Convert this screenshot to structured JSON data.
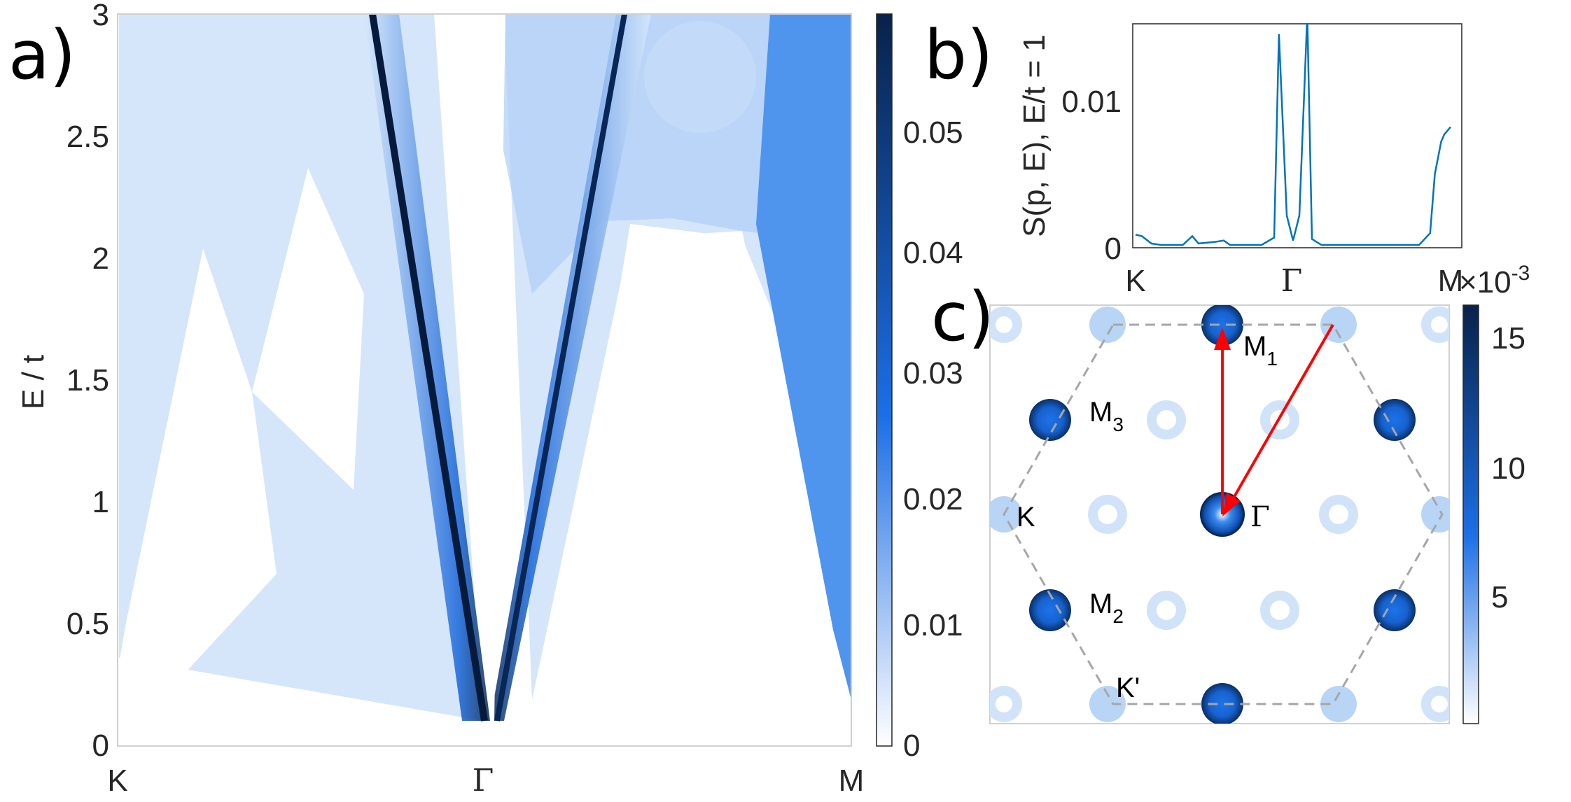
{
  "figure": {
    "panels": [
      {
        "letter": "a)",
        "chart_data": {
          "type": "heatmap",
          "title": "",
          "xlabel": "",
          "ylabel": "E / t",
          "x_ticks": [
            "K",
            "Γ",
            "M"
          ],
          "ylim": [
            0,
            3
          ],
          "y_ticks": [
            "0",
            "0.5",
            "1",
            "1.5",
            "2",
            "2.5",
            "3"
          ],
          "colorbar": {
            "range": [
              0,
              0.058
            ],
            "ticks": [
              "0",
              "0.01",
              "0.02",
              "0.03",
              "0.04",
              "0.05"
            ],
            "colormap": [
              "#ffffff",
              "#1c6fe6",
              "#08224a"
            ]
          },
          "features": [
            {
              "name": "",
              "type": "line",
              "x": [
                "K",
                "Γ"
              ],
              "y": [
                3,
                0.15
              ]
            },
            {
              "name": "",
              "type": "line",
              "x": [
                "Γ",
                "M"
              ],
              "y": [
                0.15,
                3
              ]
            }
          ]
        }
      },
      {
        "letter": "b)",
        "chart_data": {
          "type": "line",
          "title": "",
          "xlabel": "",
          "ylabel": "S(p, E), E/t = 1",
          "x_ticks": [
            "K",
            "Γ",
            "M"
          ],
          "ylim": [
            0,
            0.015
          ],
          "y_ticks": [
            "0",
            "0.01"
          ],
          "series": [
            {
              "name": "",
              "color": "#0072bd",
              "x": [
                0,
                0.02,
                0.05,
                0.08,
                0.15,
                0.18,
                0.2,
                0.25,
                0.28,
                0.3,
                0.4,
                0.44,
                0.455,
                0.48,
                0.5,
                0.52,
                0.545,
                0.56,
                0.59,
                0.62,
                0.66,
                0.7,
                0.9,
                0.935,
                0.95,
                0.97,
                0.98,
                1.0
              ],
              "values": [
                0.0007,
                0.0006,
                0.0001,
                0,
                0,
                0.0006,
                0.0001,
                0.0002,
                0.0003,
                0,
                0,
                0.0005,
                0.0143,
                0.002,
                0.0003,
                0.002,
                0.0156,
                0.0004,
                0,
                0,
                0,
                0,
                0,
                0.0008,
                0.0048,
                0.007,
                0.0075,
                0.008
              ]
            }
          ]
        }
      },
      {
        "letter": "c)",
        "chart_data": {
          "type": "heatmap",
          "title": "",
          "colorbar": {
            "exponent": "×10",
            "exponent_power": "-3",
            "range": [
              0,
              16
            ],
            "ticks": [
              "5",
              "10",
              "15"
            ],
            "colormap": [
              "#ffffff",
              "#1c6fe6",
              "#08224a"
            ]
          },
          "labels": [
            {
              "id": "M1",
              "text": "M",
              "sub": "1"
            },
            {
              "id": "M2",
              "text": "M",
              "sub": "2"
            },
            {
              "id": "M3",
              "text": "M",
              "sub": "3"
            },
            {
              "id": "K",
              "text": "K",
              "sub": ""
            },
            {
              "id": "Kp",
              "text": "K'",
              "sub": ""
            },
            {
              "id": "G",
              "text": "Γ",
              "sub": ""
            }
          ],
          "arrows": [
            {
              "from": "Γ",
              "to": "M1",
              "color": "#ff0000"
            },
            {
              "from": "Γ",
              "to": "K'",
              "color": "#ff0000"
            }
          ]
        }
      }
    ]
  }
}
